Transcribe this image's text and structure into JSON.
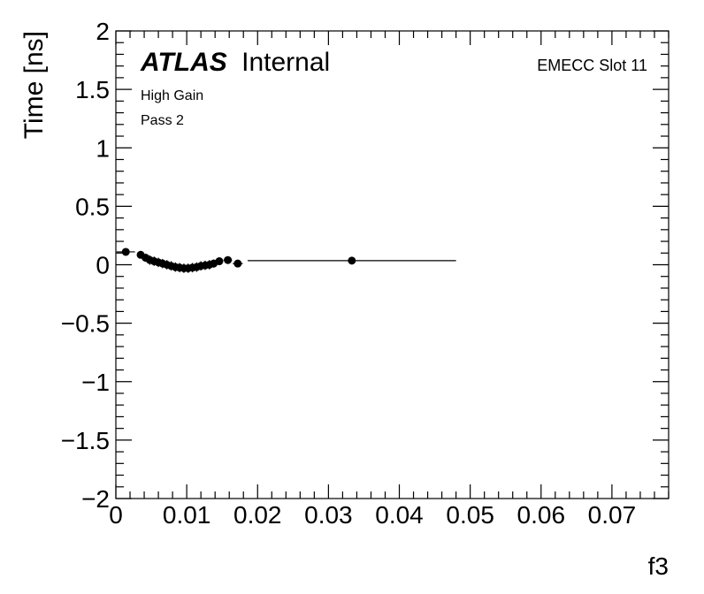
{
  "chart_data": {
    "type": "scatter",
    "xlabel": "f3",
    "ylabel": "Time [ns]",
    "xlim": [
      0,
      0.078
    ],
    "ylim": [
      -2,
      2
    ],
    "x_ticks": [
      {
        "value": 0,
        "label": "0"
      },
      {
        "value": 0.01,
        "label": "0.01"
      },
      {
        "value": 0.02,
        "label": "0.02"
      },
      {
        "value": 0.03,
        "label": "0.03"
      },
      {
        "value": 0.04,
        "label": "0.04"
      },
      {
        "value": 0.05,
        "label": "0.05"
      },
      {
        "value": 0.06,
        "label": "0.06"
      },
      {
        "value": 0.07,
        "label": "0.07"
      }
    ],
    "y_ticks": [
      {
        "value": -2,
        "label": "−2"
      },
      {
        "value": -1.5,
        "label": "−1.5"
      },
      {
        "value": -1,
        "label": "−1"
      },
      {
        "value": -0.5,
        "label": "−0.5"
      },
      {
        "value": 0,
        "label": "0"
      },
      {
        "value": 0.5,
        "label": "0.5"
      },
      {
        "value": 1,
        "label": "1"
      },
      {
        "value": 1.5,
        "label": "1.5"
      },
      {
        "value": 2,
        "label": "2"
      }
    ],
    "grid": false,
    "annotations": {
      "atlas": "ATLAS",
      "internal": "Internal",
      "gain": "High Gain",
      "pass": "Pass 2",
      "slot": "EMECC Slot 11"
    },
    "points": [
      {
        "x": 0.0014,
        "y": 0.11,
        "xerr": 0.0013,
        "yerr": 0.012
      },
      {
        "x": 0.0035,
        "y": 0.085,
        "xerr": 0.0005,
        "yerr": 0.03
      },
      {
        "x": 0.0042,
        "y": 0.06,
        "xerr": 0.0004,
        "yerr": 0.035
      },
      {
        "x": 0.0048,
        "y": 0.04,
        "xerr": 0.0004,
        "yerr": 0.04
      },
      {
        "x": 0.0054,
        "y": 0.03,
        "xerr": 0.0004,
        "yerr": 0.04
      },
      {
        "x": 0.006,
        "y": 0.02,
        "xerr": 0.0004,
        "yerr": 0.04
      },
      {
        "x": 0.0066,
        "y": 0.01,
        "xerr": 0.0004,
        "yerr": 0.04
      },
      {
        "x": 0.0072,
        "y": 0.0,
        "xerr": 0.0004,
        "yerr": 0.04
      },
      {
        "x": 0.0078,
        "y": -0.01,
        "xerr": 0.0004,
        "yerr": 0.04
      },
      {
        "x": 0.0084,
        "y": -0.02,
        "xerr": 0.0004,
        "yerr": 0.04
      },
      {
        "x": 0.009,
        "y": -0.025,
        "xerr": 0.0004,
        "yerr": 0.04
      },
      {
        "x": 0.0096,
        "y": -0.03,
        "xerr": 0.0004,
        "yerr": 0.04
      },
      {
        "x": 0.0102,
        "y": -0.03,
        "xerr": 0.0004,
        "yerr": 0.04
      },
      {
        "x": 0.0108,
        "y": -0.025,
        "xerr": 0.0004,
        "yerr": 0.04
      },
      {
        "x": 0.0114,
        "y": -0.02,
        "xerr": 0.0004,
        "yerr": 0.04
      },
      {
        "x": 0.012,
        "y": -0.01,
        "xerr": 0.0004,
        "yerr": 0.04
      },
      {
        "x": 0.0126,
        "y": -0.005,
        "xerr": 0.0004,
        "yerr": 0.04
      },
      {
        "x": 0.0132,
        "y": 0.0,
        "xerr": 0.0004,
        "yerr": 0.04
      },
      {
        "x": 0.0138,
        "y": 0.01,
        "xerr": 0.0004,
        "yerr": 0.035
      },
      {
        "x": 0.0146,
        "y": 0.03,
        "xerr": 0.0005,
        "yerr": 0.03
      },
      {
        "x": 0.0158,
        "y": 0.04,
        "xerr": 0.0006,
        "yerr": 0.02
      },
      {
        "x": 0.0172,
        "y": 0.01,
        "xerr": 0.0007,
        "yerr": 0.015
      },
      {
        "x": 0.0333,
        "y": 0.035,
        "xerr": 0.0147,
        "yerr": 0.01
      }
    ]
  }
}
